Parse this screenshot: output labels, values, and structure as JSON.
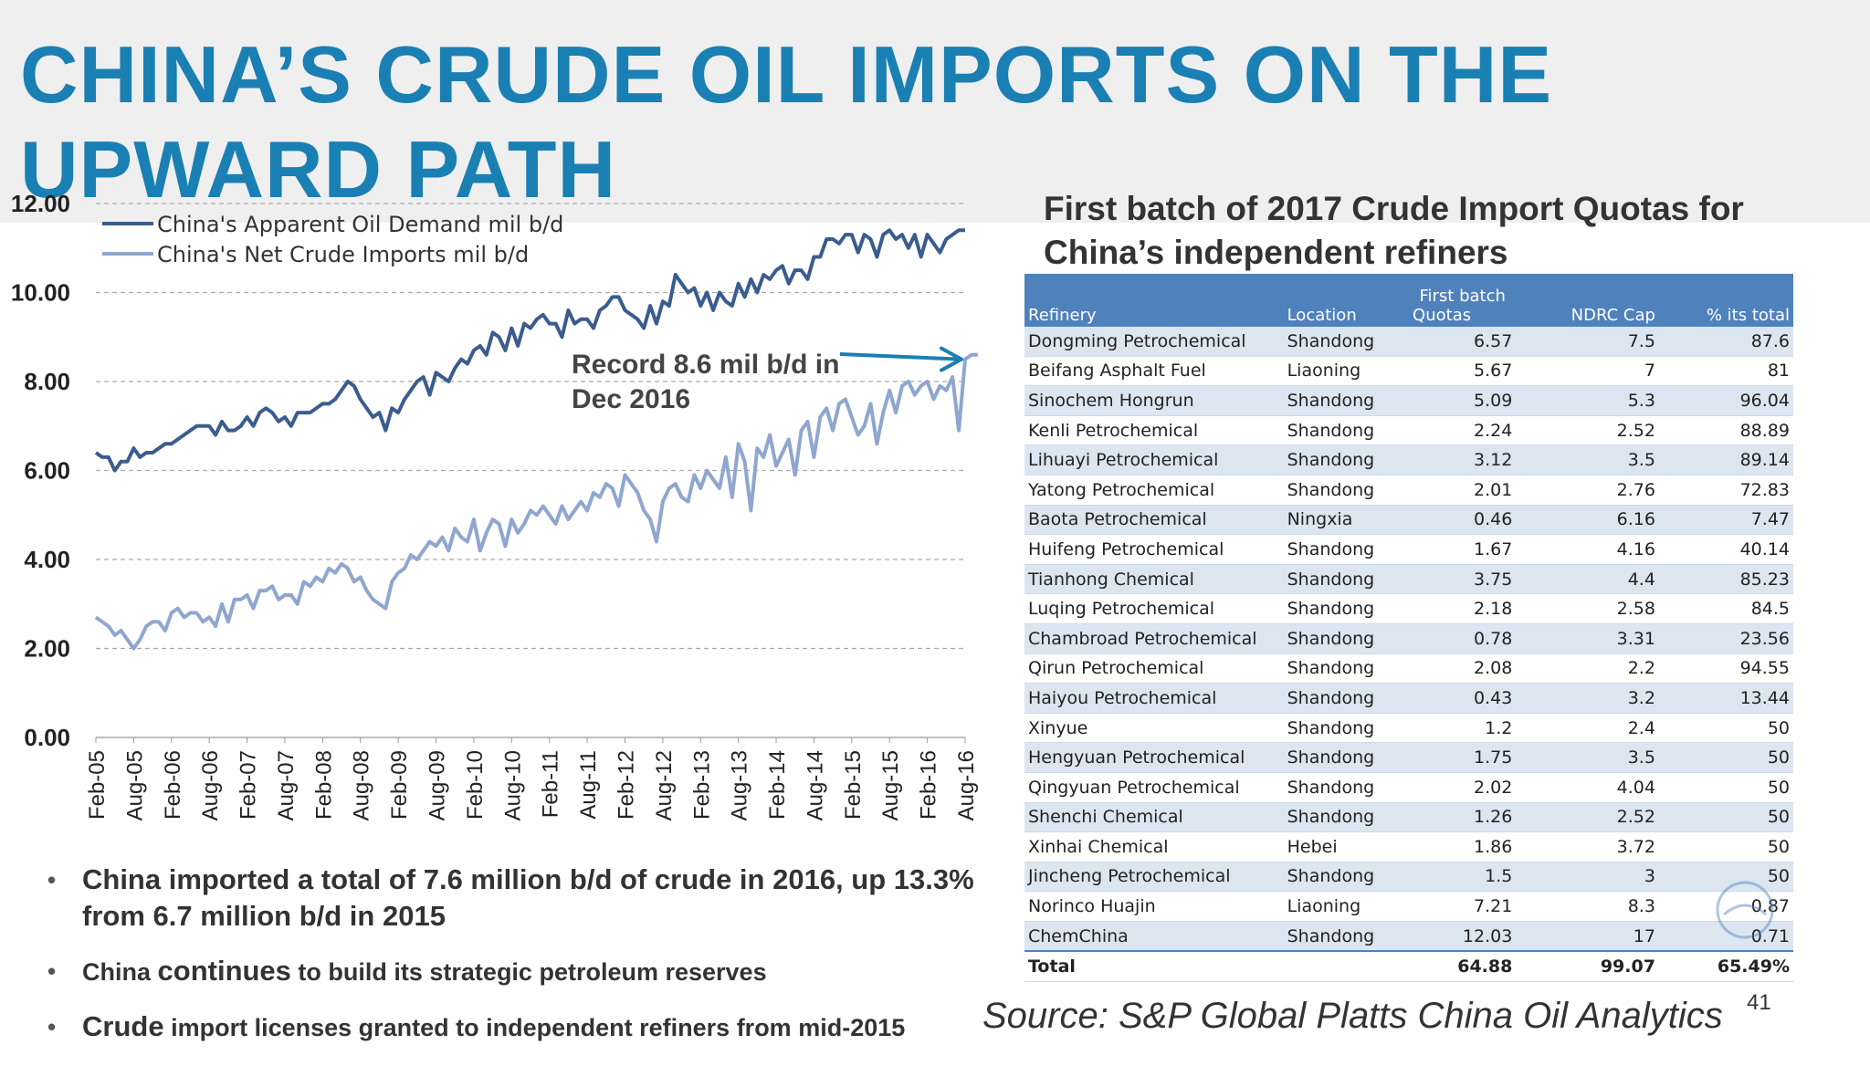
{
  "slide": {
    "title": "CHINA’S CRUDE OIL IMPORTS ON THE UPWARD PATH",
    "page_number": "41",
    "source": "Source:  S&P Global Platts China Oil Analytics"
  },
  "colors": {
    "title": "#1a7fb3",
    "demand_line": "#3b5c8e",
    "imports_line": "#8fa6cf",
    "table_header": "#4f81bd",
    "arrow": "#1a7fb3"
  },
  "chart_data": {
    "type": "line",
    "ylim": [
      0,
      12
    ],
    "y_ticks": [
      "0.00",
      "2.00",
      "4.00",
      "6.00",
      "8.00",
      "10.00",
      "12.00"
    ],
    "x_tick_labels": [
      "Feb-05",
      "Aug-05",
      "Feb-06",
      "Aug-06",
      "Feb-07",
      "Aug-07",
      "Feb-08",
      "Aug-08",
      "Feb-09",
      "Aug-09",
      "Feb-10",
      "Aug-10",
      "Feb-11",
      "Aug-11",
      "Feb-12",
      "Aug-12",
      "Feb-13",
      "Aug-13",
      "Feb-14",
      "Aug-14",
      "Feb-15",
      "Aug-15",
      "Feb-16",
      "Aug-16"
    ],
    "x_start": "Feb-05",
    "x_end": "Dec-16",
    "grid": true,
    "legend_position": "top-left",
    "annotation": "Record 8.6 mil b/d in Dec 2016",
    "series": [
      {
        "name": "China's Apparent Oil Demand mil b/d",
        "values": [
          6.4,
          6.3,
          6.3,
          6.0,
          6.2,
          6.2,
          6.5,
          6.3,
          6.4,
          6.4,
          6.5,
          6.6,
          6.6,
          6.7,
          6.8,
          6.9,
          7.0,
          7.0,
          7.0,
          6.8,
          7.1,
          6.9,
          6.9,
          7.0,
          7.2,
          7.0,
          7.3,
          7.4,
          7.3,
          7.1,
          7.2,
          7.0,
          7.3,
          7.3,
          7.3,
          7.4,
          7.5,
          7.5,
          7.6,
          7.8,
          8.0,
          7.9,
          7.6,
          7.4,
          7.2,
          7.3,
          6.9,
          7.4,
          7.3,
          7.6,
          7.8,
          8.0,
          8.1,
          7.7,
          8.2,
          8.1,
          8.0,
          8.3,
          8.5,
          8.4,
          8.7,
          8.8,
          8.6,
          9.1,
          9.0,
          8.7,
          9.2,
          8.8,
          9.3,
          9.2,
          9.4,
          9.5,
          9.3,
          9.3,
          9.0,
          9.6,
          9.3,
          9.4,
          9.4,
          9.2,
          9.6,
          9.7,
          9.9,
          9.9,
          9.6,
          9.5,
          9.4,
          9.2,
          9.7,
          9.3,
          9.8,
          9.7,
          10.4,
          10.2,
          10.0,
          10.1,
          9.7,
          10.0,
          9.6,
          10.0,
          9.8,
          9.7,
          10.2,
          9.9,
          10.3,
          10.0,
          10.4,
          10.3,
          10.5,
          10.6,
          10.2,
          10.5,
          10.5,
          10.3,
          10.8,
          10.8,
          11.2,
          11.2,
          11.1,
          11.3,
          11.3,
          10.9,
          11.3,
          11.2,
          10.8,
          11.3,
          11.4,
          11.2,
          11.3,
          11.0,
          11.3,
          10.8,
          11.3,
          11.1,
          10.9,
          11.2,
          11.3,
          11.4,
          11.4
        ]
      },
      {
        "name": "China's Net Crude Imports mil b/d",
        "values": [
          2.7,
          2.6,
          2.5,
          2.3,
          2.4,
          2.2,
          2.0,
          2.2,
          2.5,
          2.6,
          2.6,
          2.4,
          2.8,
          2.9,
          2.7,
          2.8,
          2.8,
          2.6,
          2.7,
          2.5,
          3.0,
          2.6,
          3.1,
          3.1,
          3.2,
          2.9,
          3.3,
          3.3,
          3.4,
          3.1,
          3.2,
          3.2,
          3.0,
          3.5,
          3.4,
          3.6,
          3.5,
          3.8,
          3.7,
          3.9,
          3.8,
          3.5,
          3.6,
          3.3,
          3.1,
          3.0,
          2.9,
          3.5,
          3.7,
          3.8,
          4.1,
          4.0,
          4.2,
          4.4,
          4.3,
          4.5,
          4.2,
          4.7,
          4.5,
          4.4,
          4.9,
          4.2,
          4.6,
          4.9,
          4.8,
          4.3,
          4.9,
          4.6,
          4.8,
          5.1,
          5.0,
          5.2,
          5.0,
          4.8,
          5.2,
          4.9,
          5.1,
          5.3,
          5.1,
          5.5,
          5.4,
          5.7,
          5.6,
          5.2,
          5.9,
          5.7,
          5.5,
          5.1,
          4.9,
          4.4,
          5.3,
          5.6,
          5.7,
          5.4,
          5.3,
          5.9,
          5.6,
          6.0,
          5.8,
          5.6,
          6.3,
          5.4,
          6.6,
          6.2,
          5.1,
          6.5,
          6.3,
          6.8,
          6.1,
          6.4,
          6.7,
          5.9,
          6.9,
          7.1,
          6.3,
          7.2,
          7.4,
          6.9,
          7.5,
          7.6,
          7.2,
          6.8,
          7.0,
          7.5,
          6.6,
          7.3,
          7.8,
          7.3,
          7.9,
          8.0,
          7.7,
          7.9,
          8.0,
          7.6,
          7.9,
          7.8,
          8.1,
          6.9,
          8.5,
          8.6,
          8.6
        ]
      }
    ]
  },
  "bullets": [
    {
      "text": "China imported a total of 7.6 million b/d of crude in 2016, up 13.3% from 6.7 million b/d in 2015"
    },
    {
      "lead": "China ",
      "big": "continues",
      "rest": " to build its strategic petroleum reserves"
    },
    {
      "big": "Crude",
      "rest": " import licenses granted to independent refiners from mid-2015"
    }
  ],
  "table": {
    "title": "First batch of 2017 Crude Import Quotas for China’s independent refiners",
    "headers": {
      "refinery": "Refinery",
      "location": "Location",
      "quotas_top": "First batch",
      "quotas_bottom": "Quotas",
      "ndrc": "NDRC Cap",
      "pct": "% its total"
    },
    "rows": [
      [
        "Dongming Petrochemical",
        "Shandong",
        "6.57",
        "7.5",
        "87.6"
      ],
      [
        "Beifang Asphalt Fuel",
        "Liaoning",
        "5.67",
        "7",
        "81"
      ],
      [
        "Sinochem Hongrun",
        "Shandong",
        "5.09",
        "5.3",
        "96.04"
      ],
      [
        "Kenli Petrochemical",
        "Shandong",
        "2.24",
        "2.52",
        "88.89"
      ],
      [
        "Lihuayi Petrochemical",
        "Shandong",
        "3.12",
        "3.5",
        "89.14"
      ],
      [
        "Yatong Petrochemical",
        "Shandong",
        "2.01",
        "2.76",
        "72.83"
      ],
      [
        "Baota Petrochemical",
        "Ningxia",
        "0.46",
        "6.16",
        "7.47"
      ],
      [
        "Huifeng  Petrochemical",
        "Shandong",
        "1.67",
        "4.16",
        "40.14"
      ],
      [
        "Tianhong Chemical",
        "Shandong",
        "3.75",
        "4.4",
        "85.23"
      ],
      [
        "Luqing Petrochemical",
        "Shandong",
        "2.18",
        "2.58",
        "84.5"
      ],
      [
        "Chambroad Petrochemical",
        "Shandong",
        "0.78",
        "3.31",
        "23.56"
      ],
      [
        "Qirun Petrochemical",
        "Shandong",
        "2.08",
        "2.2",
        "94.55"
      ],
      [
        "Haiyou Petrochemical",
        "Shandong",
        "0.43",
        "3.2",
        "13.44"
      ],
      [
        "Xinyue",
        "Shandong",
        "1.2",
        "2.4",
        "50"
      ],
      [
        "Hengyuan Petrochemical",
        "Shandong",
        "1.75",
        "3.5",
        "50"
      ],
      [
        "Qingyuan Petrochemical",
        "Shandong",
        "2.02",
        "4.04",
        "50"
      ],
      [
        "Shenchi Chemical",
        "Shandong",
        "1.26",
        "2.52",
        "50"
      ],
      [
        "Xinhai Chemical",
        "Hebei",
        "1.86",
        "3.72",
        "50"
      ],
      [
        "Jincheng Petrochemical",
        "Shandong",
        "1.5",
        "3",
        "50"
      ],
      [
        "Norinco Huajin",
        "Liaoning",
        "7.21",
        "8.3",
        "0.87"
      ],
      [
        "ChemChina",
        "Shandong",
        "12.03",
        "17",
        "0.71"
      ]
    ],
    "total": [
      "Total",
      "",
      "64.88",
      "99.07",
      "65.49%"
    ]
  }
}
